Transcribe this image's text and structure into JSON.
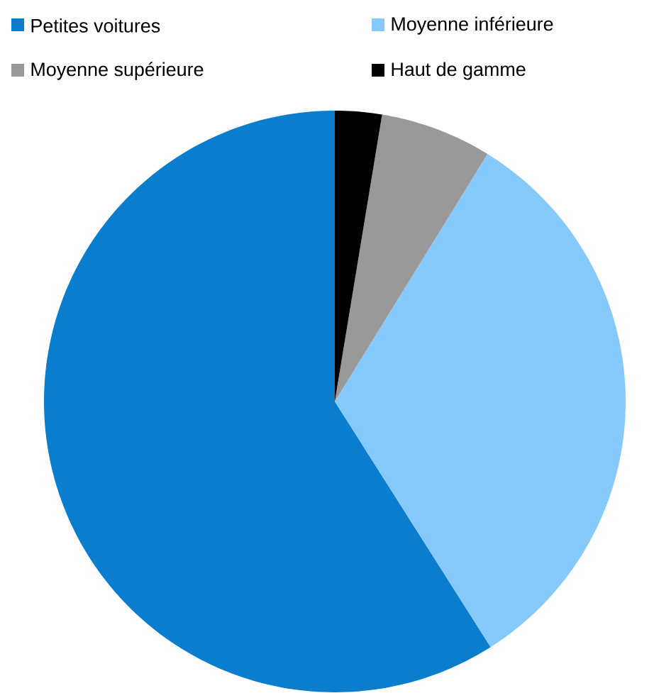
{
  "chart_data": {
    "type": "pie",
    "categories": [
      "Petites voitures",
      "Moyenne inférieure",
      "Moyenne supérieure",
      "Haut de gamme"
    ],
    "values": [
      59,
      32.2,
      6.2,
      2.6
    ],
    "colors": [
      "#0a7dcd",
      "#85c9fd",
      "#999999",
      "#000000"
    ],
    "legend": "top"
  }
}
